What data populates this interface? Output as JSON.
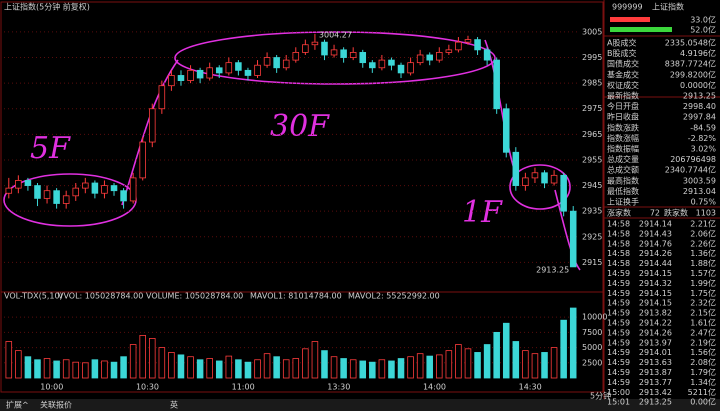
{
  "header": {
    "title": "上证指数(5分钟 前复权)"
  },
  "chart_data": {
    "type": "candlestick",
    "candles": [
      [
        2942,
        2948,
        2940,
        2944
      ],
      [
        2944,
        2949,
        2942,
        2947
      ],
      [
        2947,
        2948,
        2943,
        2945
      ],
      [
        2945,
        2946,
        2937,
        2940
      ],
      [
        2940,
        2945,
        2938,
        2943
      ],
      [
        2943,
        2944,
        2936,
        2938
      ],
      [
        2938,
        2943,
        2936,
        2941
      ],
      [
        2941,
        2946,
        2939,
        2944
      ],
      [
        2944,
        2948,
        2942,
        2946
      ],
      [
        2946,
        2947,
        2940,
        2942
      ],
      [
        2942,
        2947,
        2940,
        2945
      ],
      [
        2945,
        2946,
        2941,
        2943
      ],
      [
        2943,
        2944,
        2936,
        2939
      ],
      [
        2939,
        2950,
        2938,
        2948
      ],
      [
        2948,
        2964,
        2947,
        2962
      ],
      [
        2962,
        2977,
        2960,
        2975
      ],
      [
        2975,
        2986,
        2973,
        2984
      ],
      [
        2984,
        2990,
        2982,
        2988
      ],
      [
        2988,
        2990,
        2984,
        2986
      ],
      [
        2986,
        2992,
        2985,
        2990
      ],
      [
        2990,
        2991,
        2985,
        2987
      ],
      [
        2987,
        2993,
        2986,
        2991
      ],
      [
        2991,
        2992,
        2987,
        2989
      ],
      [
        2989,
        2995,
        2988,
        2993
      ],
      [
        2993,
        2994,
        2988,
        2990
      ],
      [
        2990,
        2991,
        2986,
        2988
      ],
      [
        2988,
        2994,
        2987,
        2992
      ],
      [
        2992,
        2997,
        2991,
        2995
      ],
      [
        2995,
        2996,
        2989,
        2991
      ],
      [
        2991,
        2996,
        2990,
        2994
      ],
      [
        2994,
        2999,
        2993,
        2997
      ],
      [
        2997,
        3002,
        2996,
        3000
      ],
      [
        3000,
        3004.27,
        2998,
        3001
      ],
      [
        3001,
        3002,
        2994,
        2996
      ],
      [
        2996,
        3000,
        2995,
        2998
      ],
      [
        2998,
        2999,
        2993,
        2995
      ],
      [
        2995,
        2999,
        2994,
        2997
      ],
      [
        2997,
        2998,
        2991,
        2993
      ],
      [
        2993,
        2994,
        2989,
        2991
      ],
      [
        2991,
        2996,
        2990,
        2994
      ],
      [
        2994,
        2995,
        2990,
        2992
      ],
      [
        2992,
        2993,
        2987,
        2989
      ],
      [
        2989,
        2995,
        2988,
        2993
      ],
      [
        2993,
        2998,
        2992,
        2996
      ],
      [
        2996,
        2997,
        2992,
        2994
      ],
      [
        2994,
        2999,
        2993,
        2997
      ],
      [
        2997,
        3000,
        2996,
        2998
      ],
      [
        2998,
        3003,
        2997,
        3001
      ],
      [
        3001,
        3003.5,
        3000,
        3002
      ],
      [
        3002,
        3003,
        2996,
        2998
      ],
      [
        2998,
        2999,
        2992,
        2994
      ],
      [
        2994,
        2995,
        2973,
        2975
      ],
      [
        2975,
        2977,
        2956,
        2958
      ],
      [
        2958,
        2960,
        2943,
        2945
      ],
      [
        2945,
        2950,
        2943,
        2948
      ],
      [
        2948,
        2952,
        2946,
        2950
      ],
      [
        2950,
        2951,
        2944,
        2946
      ],
      [
        2946,
        2951,
        2945,
        2949
      ],
      [
        2949,
        2950,
        2933,
        2935
      ],
      [
        2935,
        2937,
        2913.25,
        2913.25
      ]
    ],
    "ylim": [
      2905,
      3012
    ],
    "yticks": [
      2915,
      2925,
      2935,
      2945,
      2955,
      2965,
      2975,
      2985,
      2995,
      3005
    ],
    "grid": true,
    "up_color": "#ff3c3c",
    "down_color": "#3cd7d7",
    "annotations": [
      "5F",
      "30F",
      "1F"
    ],
    "volume": {
      "labels": [
        "VOL-TDX(5,10)",
        "VVOL: 105028784.00",
        "VOLUME: 105028784.00",
        "MAVOL1: 81014784.00",
        "MAVOL2: 55252992.00"
      ],
      "values": [
        6000,
        4500,
        3500,
        3000,
        3200,
        2800,
        3000,
        2600,
        2500,
        3000,
        2800,
        2600,
        3500,
        5500,
        7000,
        6500,
        5000,
        4200,
        3800,
        3500,
        3000,
        3200,
        2800,
        3600,
        3000,
        2600,
        3000,
        4000,
        3500,
        3000,
        3200,
        4800,
        6000,
        4500,
        3500,
        3200,
        3000,
        2800,
        2600,
        3000,
        2800,
        3200,
        3500,
        4000,
        3600,
        3800,
        4500,
        5500,
        4800,
        4200,
        5500,
        7500,
        9000,
        6000,
        4500,
        4000,
        4200,
        5000,
        9500,
        11500
      ],
      "ylim": [
        0,
        12000
      ],
      "yticks": [
        2500,
        5000,
        7500,
        10000
      ]
    },
    "time_labels": [
      "10:00",
      "10:30",
      "11:00",
      "13:30",
      "14:00",
      "14:30"
    ]
  },
  "quote_panel": {
    "code": "999999",
    "name": "上证指数",
    "bar_labels": [
      "33.0亿",
      "52.0亿"
    ],
    "stats": [
      [
        "A股成交",
        "2335.0548亿",
        "#ffff54"
      ],
      [
        "B股成交",
        "4.9196亿",
        "#ffff54"
      ],
      [
        "国债成交",
        "8387.7724亿",
        "#ffff54"
      ],
      [
        "基金成交",
        "299.8200亿",
        "#ffff54"
      ],
      [
        "权证成交",
        "0.0000亿",
        "#ffff54"
      ],
      [
        "最新指数",
        "2913.25",
        "#3cd73c"
      ],
      [
        "今日开盘",
        "2998.40",
        "#ff3c3c"
      ],
      [
        "昨日收盘",
        "2997.84",
        "#e0e0e0"
      ],
      [
        "指数涨跌",
        "-84.59",
        "#3cd73c"
      ],
      [
        "指数涨幅",
        "-2.82%",
        "#3cd73c"
      ],
      [
        "指数振幅",
        "3.02%",
        "#e0e0e0"
      ],
      [
        "总成交量",
        "206796498",
        "#ffff54"
      ],
      [
        "总成交额",
        "2340.7744亿",
        "#ffff54"
      ],
      [
        "最高指数",
        "3003.59",
        "#ff3c3c"
      ],
      [
        "最低指数",
        "2913.04",
        "#3cd73c"
      ],
      [
        "上证换手",
        "0.75%",
        "#e0e0e0"
      ]
    ],
    "breadth": [
      "涨家数",
      "72",
      "跌家数",
      "1103"
    ],
    "ticks": [
      [
        "14:58",
        "2914.14",
        "2.21亿"
      ],
      [
        "14:58",
        "2914.43",
        "2.06亿"
      ],
      [
        "14:58",
        "2914.76",
        "2.26亿"
      ],
      [
        "14:58",
        "2914.26",
        "1.36亿"
      ],
      [
        "14:58",
        "2914.44",
        "1.88亿"
      ],
      [
        "14:59",
        "2914.15",
        "1.57亿"
      ],
      [
        "14:59",
        "2914.32",
        "1.99亿"
      ],
      [
        "14:59",
        "2914.15",
        "1.75亿"
      ],
      [
        "14:59",
        "2914.15",
        "2.32亿"
      ],
      [
        "14:59",
        "2913.82",
        "2.15亿"
      ],
      [
        "14:59",
        "2914.22",
        "1.61亿"
      ],
      [
        "14:59",
        "2914.26",
        "2.47亿"
      ],
      [
        "14:59",
        "2913.97",
        "2.19亿"
      ],
      [
        "14:59",
        "2914.01",
        "1.56亿"
      ],
      [
        "14:59",
        "2913.63",
        "2.08亿"
      ],
      [
        "14:59",
        "2913.87",
        "1.79亿"
      ],
      [
        "14:59",
        "2913.77",
        "1.34亿"
      ],
      [
        "15:00",
        "2913.42",
        "5211亿"
      ],
      [
        "15:01",
        "2913.25",
        "0.00亿"
      ]
    ]
  },
  "footer": {
    "items": [
      "扩展^",
      "关联报价",
      "英",
      "5分钟"
    ]
  }
}
